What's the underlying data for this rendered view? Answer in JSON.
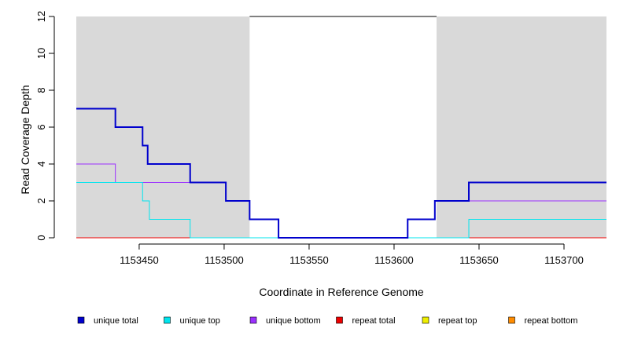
{
  "chart_data": {
    "type": "line",
    "title": "",
    "xlabel": "Coordinate in Reference Genome",
    "ylabel": "Read Coverage Depth",
    "xlim": [
      1153413,
      1153725
    ],
    "ylim": [
      0,
      12
    ],
    "x_ticks": [
      1153450,
      1153500,
      1153550,
      1153600,
      1153650,
      1153700
    ],
    "y_ticks": [
      0,
      2,
      4,
      6,
      8,
      10,
      12
    ],
    "shaded_regions": [
      [
        1153413,
        1153515
      ],
      [
        1153625,
        1153725
      ]
    ],
    "shade_color": "#d9d9d9",
    "top_line": {
      "x": [
        1153515,
        1153625
      ],
      "y": 12
    },
    "grid": false,
    "legend_position": "bottom",
    "series": [
      {
        "name": "unique total",
        "color": "#0000cd",
        "width": 2,
        "x": [
          1153413,
          1153436,
          1153452,
          1153455,
          1153480,
          1153501,
          1153515,
          1153532,
          1153608,
          1153624,
          1153644,
          1153725
        ],
        "y": [
          7,
          6,
          5,
          4,
          3,
          2,
          1,
          0,
          1,
          2,
          3,
          3
        ]
      },
      {
        "name": "unique top",
        "color": "#00e5ee",
        "width": 1,
        "x": [
          1153413,
          1153452,
          1153456,
          1153480,
          1153608,
          1153644,
          1153725
        ],
        "y": [
          3,
          2,
          1,
          0,
          0,
          1,
          1
        ]
      },
      {
        "name": "unique bottom",
        "color": "#9b30ff",
        "width": 1,
        "x": [
          1153413,
          1153436,
          1153501,
          1153515,
          1153532,
          1153608,
          1153624,
          1153725
        ],
        "y": [
          4,
          3,
          2,
          1,
          0,
          1,
          2,
          2
        ]
      },
      {
        "name": "repeat total",
        "color": "#ee0000",
        "width": 1,
        "x": [
          1153413,
          1153725
        ],
        "y": [
          0,
          0
        ]
      },
      {
        "name": "repeat top",
        "color": "#eeee00",
        "width": 1,
        "x": [
          1153413,
          1153725
        ],
        "y": [
          0,
          0
        ]
      },
      {
        "name": "repeat bottom",
        "color": "#ff8c00",
        "width": 1,
        "x": [
          1153413,
          1153725
        ],
        "y": [
          0,
          0
        ]
      }
    ]
  }
}
